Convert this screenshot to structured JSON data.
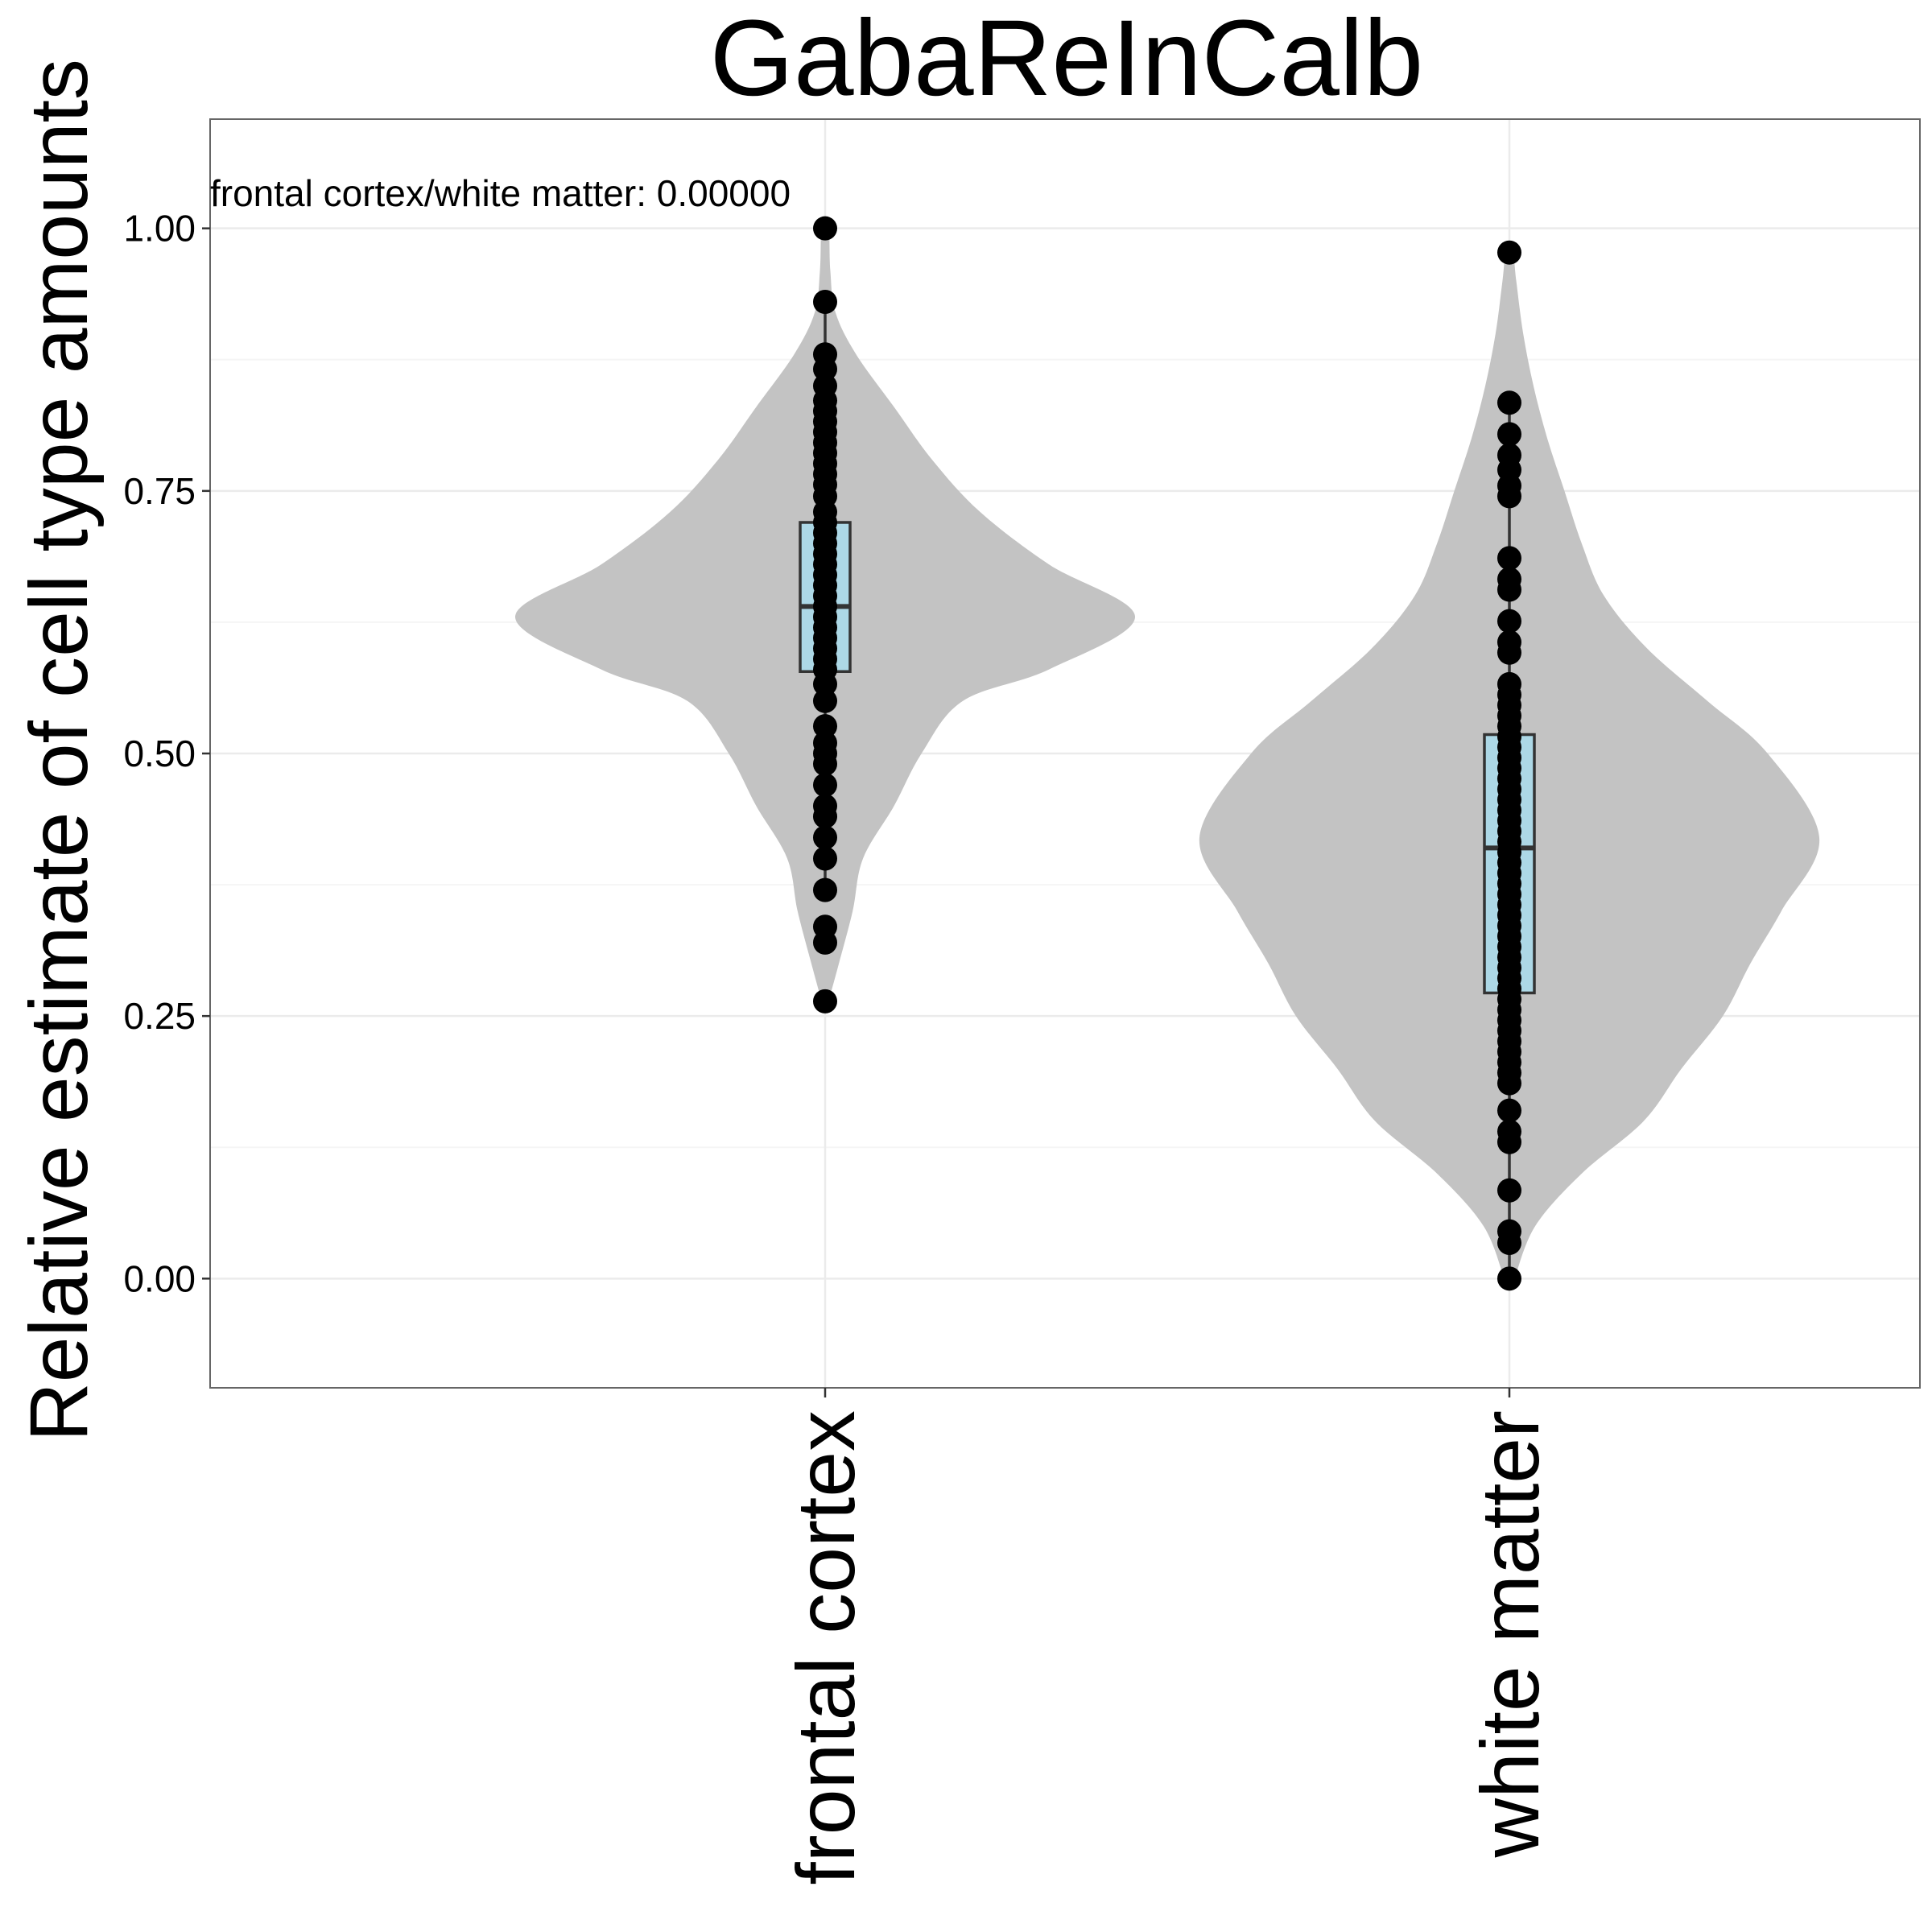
{
  "chart_data": {
    "type": "violin",
    "title": "GabaReInCalb",
    "ylabel": "Relative estimate of cell type amounts",
    "xlabel": "",
    "ylim": [
      -0.104,
      1.104
    ],
    "yticks": [
      0.0,
      0.25,
      0.5,
      0.75,
      1.0
    ],
    "ytick_labels": [
      "0.00",
      "0.25",
      "0.50",
      "0.75",
      "1.00"
    ],
    "grid": true,
    "legend": "none",
    "annotation": "frontal cortex/white matter: 0.00000",
    "categories": [
      "frontal cortex",
      "white matter"
    ],
    "colors": {
      "violin": "#c3c3c3",
      "box": "#add8e6",
      "box_stroke": "#333333",
      "points": "#000000",
      "grid_major": "#ebebeb",
      "grid_minor": "#f5f5f5",
      "panel_border": "#666666"
    },
    "groups": [
      {
        "name": "frontal cortex",
        "box": {
          "q1": 0.578,
          "median": 0.64,
          "q3": 0.72,
          "whisker_low": 0.38,
          "whisker_high": 0.92
        },
        "density": [
          [
            0.264,
            0.02
          ],
          [
            0.3,
            0.08
          ],
          [
            0.35,
            0.16
          ],
          [
            0.4,
            0.22
          ],
          [
            0.45,
            0.4
          ],
          [
            0.5,
            0.56
          ],
          [
            0.55,
            0.8
          ],
          [
            0.58,
            1.3
          ],
          [
            0.63,
            1.8
          ],
          [
            0.68,
            1.3
          ],
          [
            0.73,
            0.9
          ],
          [
            0.78,
            0.62
          ],
          [
            0.83,
            0.4
          ],
          [
            0.88,
            0.18
          ],
          [
            0.92,
            0.06
          ],
          [
            0.96,
            0.03
          ],
          [
            1.0,
            0.02
          ]
        ],
        "points": [
          1.0,
          0.93,
          0.88,
          0.866,
          0.85,
          0.836,
          0.826,
          0.816,
          0.806,
          0.796,
          0.786,
          0.776,
          0.766,
          0.756,
          0.745,
          0.73,
          0.72,
          0.71,
          0.7,
          0.69,
          0.68,
          0.67,
          0.66,
          0.65,
          0.64,
          0.63,
          0.62,
          0.61,
          0.6,
          0.59,
          0.58,
          0.566,
          0.55,
          0.526,
          0.51,
          0.5,
          0.49,
          0.47,
          0.45,
          0.44,
          0.42,
          0.4,
          0.37,
          0.335,
          0.32,
          0.264
        ]
      },
      {
        "name": "white matter",
        "box": {
          "q1": 0.272,
          "median": 0.41,
          "q3": 0.518,
          "whisker_low": 0.0,
          "whisker_high": 0.83
        },
        "density": [
          [
            0.0,
            0.03
          ],
          [
            0.05,
            0.15
          ],
          [
            0.1,
            0.42
          ],
          [
            0.15,
            0.78
          ],
          [
            0.2,
            1.0
          ],
          [
            0.25,
            1.24
          ],
          [
            0.3,
            1.4
          ],
          [
            0.35,
            1.58
          ],
          [
            0.42,
            1.8
          ],
          [
            0.5,
            1.5
          ],
          [
            0.55,
            1.15
          ],
          [
            0.6,
            0.8
          ],
          [
            0.65,
            0.55
          ],
          [
            0.7,
            0.42
          ],
          [
            0.75,
            0.32
          ],
          [
            0.8,
            0.22
          ],
          [
            0.85,
            0.14
          ],
          [
            0.9,
            0.08
          ],
          [
            0.95,
            0.04
          ],
          [
            0.977,
            0.02
          ]
        ],
        "points": [
          0.977,
          0.834,
          0.804,
          0.784,
          0.77,
          0.755,
          0.745,
          0.686,
          0.666,
          0.656,
          0.626,
          0.606,
          0.596,
          0.566,
          0.556,
          0.546,
          0.536,
          0.526,
          0.516,
          0.506,
          0.496,
          0.486,
          0.476,
          0.466,
          0.456,
          0.446,
          0.436,
          0.426,
          0.416,
          0.406,
          0.396,
          0.386,
          0.376,
          0.366,
          0.356,
          0.346,
          0.336,
          0.326,
          0.316,
          0.306,
          0.296,
          0.286,
          0.276,
          0.266,
          0.256,
          0.246,
          0.236,
          0.226,
          0.216,
          0.206,
          0.196,
          0.186,
          0.16,
          0.14,
          0.13,
          0.084,
          0.045,
          0.034,
          0.0
        ]
      }
    ]
  }
}
